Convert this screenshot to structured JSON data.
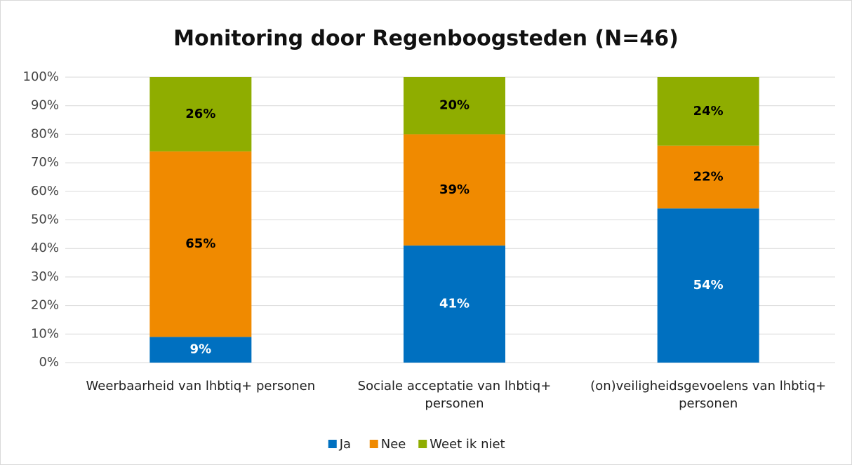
{
  "chart_data": {
    "type": "stacked_bar",
    "title": "Monitoring door Regenboogsteden (N=46)",
    "categories": [
      "Weerbaarheid van lhbtiq+ personen",
      "Sociale acceptatie van lhbtiq+ personen",
      "(on)veiligheidsgevoelens van lhbtiq+ personen"
    ],
    "series": [
      {
        "name": "Ja",
        "color": "#0070c0",
        "label_color": "#ffffff",
        "values": [
          9,
          41,
          54
        ],
        "value_labels": [
          "9%",
          "41%",
          "54%"
        ]
      },
      {
        "name": "Nee",
        "color": "#f08a00",
        "label_color": "#000000",
        "values": [
          65,
          39,
          22
        ],
        "value_labels": [
          "65%",
          "39%",
          "22%"
        ]
      },
      {
        "name": "Weet ik niet",
        "color": "#8fad00",
        "label_color": "#000000",
        "values": [
          26,
          20,
          24
        ],
        "value_labels": [
          "26%",
          "20%",
          "24%"
        ]
      }
    ],
    "ylim": [
      0,
      100
    ],
    "yticks": [
      {
        "value": 0,
        "label": "0%"
      },
      {
        "value": 10,
        "label": "10%"
      },
      {
        "value": 20,
        "label": "20%"
      },
      {
        "value": 30,
        "label": "30%"
      },
      {
        "value": 40,
        "label": "40%"
      },
      {
        "value": 50,
        "label": "50%"
      },
      {
        "value": 60,
        "label": "60%"
      },
      {
        "value": 70,
        "label": "70%"
      },
      {
        "value": 80,
        "label": "80%"
      },
      {
        "value": 90,
        "label": "90%"
      },
      {
        "value": 100,
        "label": "100%"
      }
    ],
    "grid": true,
    "legend": "bottom"
  }
}
